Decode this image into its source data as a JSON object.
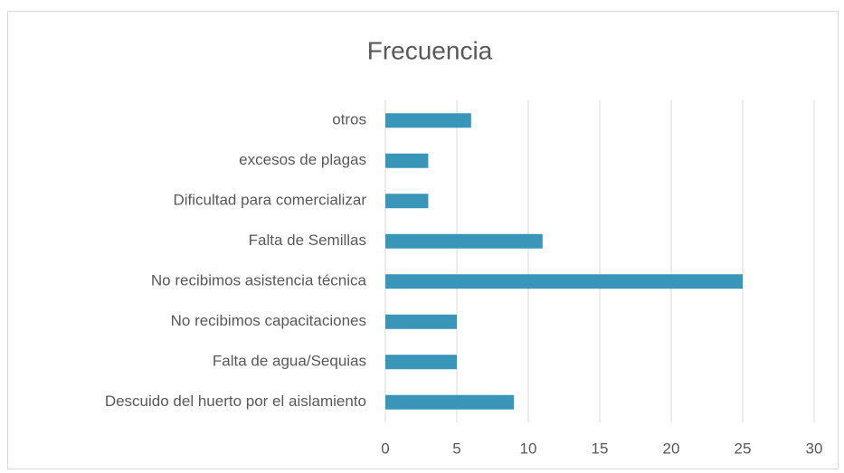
{
  "chart_data": {
    "type": "bar",
    "orientation": "horizontal",
    "title": "Frecuencia",
    "categories": [
      "otros",
      "excesos de plagas",
      "Dificultad para comercializar",
      "Falta de Semillas",
      "No recibimos asistencia técnica",
      "No recibimos capacitaciones",
      "Falta de agua/Sequias",
      "Descuido del huerto por el aislamiento"
    ],
    "values": [
      6,
      3,
      3,
      11,
      25,
      5,
      5,
      9
    ],
    "color": "#3a96b9",
    "xlim": [
      0,
      30
    ],
    "xticks": [
      0,
      5,
      10,
      15,
      20,
      25,
      30
    ],
    "grid": true
  }
}
